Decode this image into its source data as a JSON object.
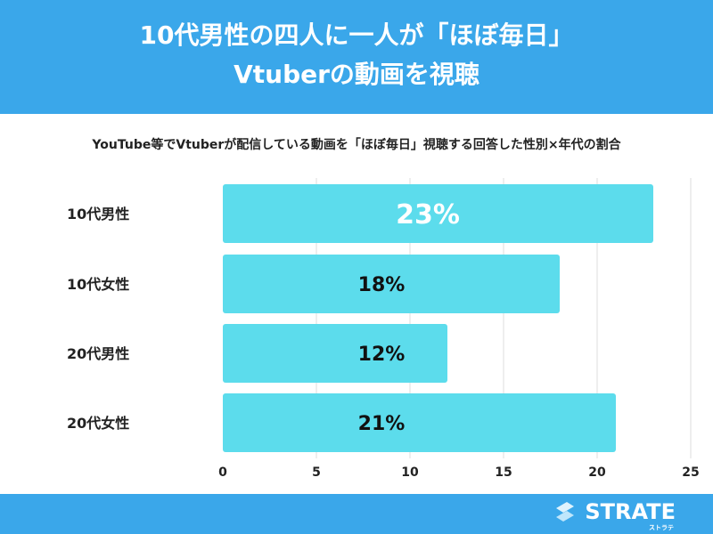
{
  "header": {
    "line1": "10代男性の四人に一人が「ほぼ毎日」",
    "line2": "Vtuberの動画を視聴"
  },
  "footer": {
    "logo": "STRATE",
    "logo_sub": "ストラテ"
  },
  "colors": {
    "header": "#3aa7ea",
    "bar": "#5cdcec"
  },
  "chart_data": {
    "type": "bar",
    "orientation": "horizontal",
    "title": "YouTube等でVtuberが配信している動画を「ほぼ毎日」視聴する回答した性別×年代の割合",
    "categories": [
      "10代男性",
      "10代女性",
      "20代男性",
      "20代女性"
    ],
    "values": [
      23,
      18,
      12,
      21
    ],
    "data_labels": [
      "23%",
      "18%",
      "12%",
      "21%"
    ],
    "xlim": [
      0,
      25
    ],
    "xticks": [
      "0",
      "5",
      "10",
      "15",
      "20",
      "25"
    ],
    "grid": true
  }
}
